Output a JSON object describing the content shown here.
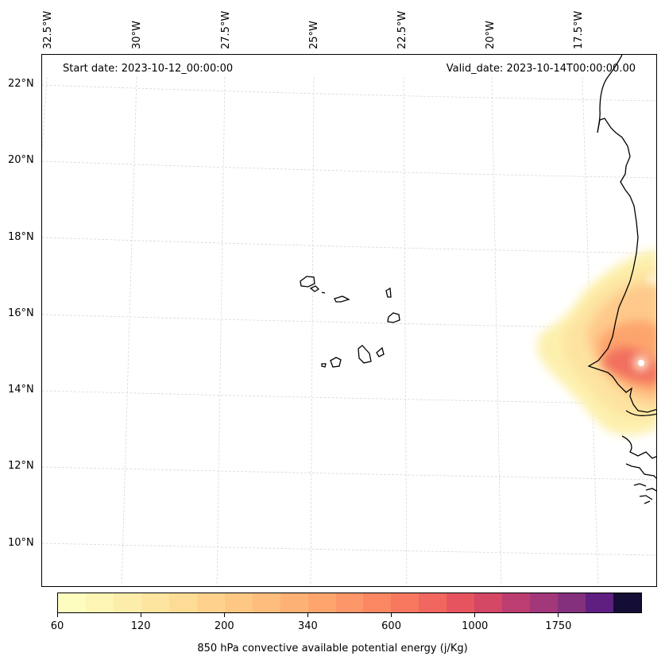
{
  "header": {
    "start_date": "Start date: 2023-10-12_00:00:00",
    "valid_date": "Valid_date: 2023-10-14T00:00:00.00"
  },
  "lon_labels": [
    "32.5°W",
    "30°W",
    "27.5°W",
    "25°W",
    "22.5°W",
    "20°W",
    "17.5°W"
  ],
  "lat_labels": [
    "22°N",
    "20°N",
    "18°N",
    "16°N",
    "14°N",
    "12°N",
    "10°N"
  ],
  "colorbar": {
    "title": "850 hPa convective available potential energy (j/Kg)",
    "tick_labels": [
      "60",
      "120",
      "200",
      "340",
      "600",
      "1000",
      "1750"
    ],
    "colors": [
      "#fcfdbf",
      "#fcf5b4",
      "#fcedaa",
      "#fde5a0",
      "#fddc96",
      "#fed28d",
      "#fec884",
      "#febd7c",
      "#feb174",
      "#fea56d",
      "#fd9668",
      "#fb8863",
      "#f8785f",
      "#f1665e",
      "#e6555f",
      "#d44765",
      "#bc3d70",
      "#a2377a",
      "#85307d",
      "#5f1f80",
      "#140e36"
    ]
  },
  "map": {
    "field_max_location": "near 15°N, 17°W (Senegal coast)",
    "coastline_color": "#000000",
    "gridline_color": "#cccccc"
  }
}
